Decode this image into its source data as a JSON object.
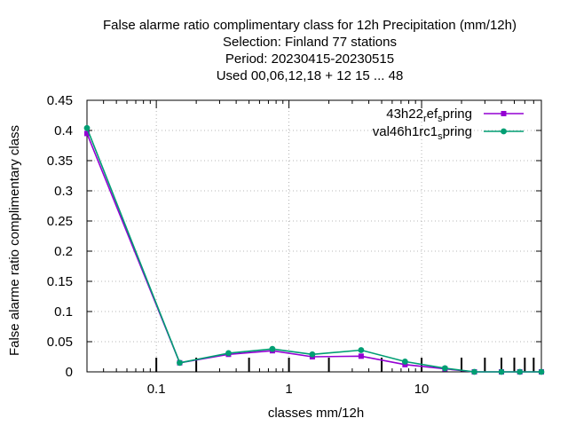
{
  "chart_data": {
    "type": "line",
    "title_lines": [
      "False alarme ratio complimentary class  for 12h Precipitation (mm/12h)",
      "Selection: Finland      77 stations",
      "Period: 20230415-20230515",
      "Used  00,06,12,18  + 12 15 ... 48"
    ],
    "xlabel": "classes mm/12h",
    "ylabel": "False alarme ratio complimentary class",
    "x_scale": "log",
    "xlim": [
      0.03,
      80
    ],
    "ylim": [
      0,
      0.45
    ],
    "x_ticks": [
      {
        "value": 0.1,
        "label": "0.1"
      },
      {
        "value": 1,
        "label": "1"
      },
      {
        "value": 10,
        "label": "10"
      }
    ],
    "y_ticks": [
      {
        "value": 0,
        "label": "0"
      },
      {
        "value": 0.05,
        "label": "0.05"
      },
      {
        "value": 0.1,
        "label": "0.1"
      },
      {
        "value": 0.15,
        "label": "0.15"
      },
      {
        "value": 0.2,
        "label": "0.2"
      },
      {
        "value": 0.25,
        "label": "0.25"
      },
      {
        "value": 0.3,
        "label": "0.3"
      },
      {
        "value": 0.35,
        "label": "0.35"
      },
      {
        "value": 0.4,
        "label": "0.4"
      },
      {
        "value": 0.45,
        "label": "0.45"
      }
    ],
    "grid": true,
    "legend_position": "top-right",
    "class_marks": [
      0.1,
      0.2,
      0.5,
      1,
      2,
      5,
      10,
      20,
      30,
      40,
      50,
      60,
      70
    ],
    "series": [
      {
        "name_main": "43h22",
        "name_sub": "r",
        "name_mid": "ef",
        "name_sub2": "s",
        "name_end": "pring",
        "color": "#9400d3",
        "x": [
          0.03,
          0.15,
          0.35,
          0.75,
          1.5,
          3.5,
          7.5,
          15,
          25,
          40,
          55,
          80
        ],
        "values": [
          0.395,
          0.015,
          0.029,
          0.035,
          0.025,
          0.026,
          0.012,
          0.005,
          0.0,
          0.0,
          0.0,
          0.0
        ]
      },
      {
        "name_main": "val46h1rc1",
        "name_sub": "",
        "name_mid": "",
        "name_sub2": "s",
        "name_end": "pring",
        "color": "#009e73",
        "x": [
          0.03,
          0.15,
          0.35,
          0.75,
          1.5,
          3.5,
          7.5,
          15,
          25,
          40,
          55,
          80
        ],
        "values": [
          0.404,
          0.015,
          0.031,
          0.038,
          0.029,
          0.036,
          0.017,
          0.006,
          0.0,
          0.0,
          0.0,
          0.0
        ]
      }
    ]
  }
}
